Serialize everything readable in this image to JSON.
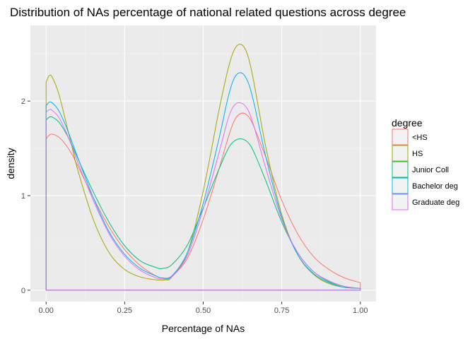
{
  "chart_data": {
    "type": "line",
    "title": "Distribution of NAs percentage of national related questions across degree",
    "xlabel": "Percentage of NAs",
    "ylabel": "density",
    "xlim": [
      -0.05,
      1.05
    ],
    "ylim": [
      -0.12,
      2.8
    ],
    "x_ticks": [
      0.0,
      0.25,
      0.5,
      0.75,
      1.0
    ],
    "x_tick_labels": [
      "0.00",
      "0.25",
      "0.50",
      "0.75",
      "1.00"
    ],
    "y_ticks": [
      0,
      1,
      2
    ],
    "y_tick_labels": [
      "0",
      "1",
      "2"
    ],
    "grid": true,
    "legend": {
      "title": "degree",
      "position": "right"
    },
    "series": [
      {
        "name": "<HS",
        "color": "#F8766D",
        "x": [
          0.0,
          0.01,
          0.02,
          0.04,
          0.06,
          0.08,
          0.1,
          0.15,
          0.2,
          0.25,
          0.3,
          0.35,
          0.37,
          0.4,
          0.45,
          0.5,
          0.55,
          0.58,
          0.6,
          0.62,
          0.64,
          0.66,
          0.7,
          0.75,
          0.8,
          0.85,
          0.9,
          0.95,
          1.0
        ],
        "y": [
          1.6,
          1.64,
          1.65,
          1.62,
          1.55,
          1.45,
          1.32,
          0.98,
          0.67,
          0.43,
          0.26,
          0.15,
          0.13,
          0.15,
          0.34,
          0.75,
          1.28,
          1.62,
          1.8,
          1.87,
          1.85,
          1.74,
          1.4,
          0.95,
          0.6,
          0.36,
          0.22,
          0.13,
          0.08
        ]
      },
      {
        "name": "HS",
        "color": "#A3A500",
        "x": [
          0.0,
          0.01,
          0.02,
          0.04,
          0.06,
          0.08,
          0.1,
          0.15,
          0.2,
          0.25,
          0.3,
          0.35,
          0.38,
          0.4,
          0.45,
          0.5,
          0.55,
          0.58,
          0.6,
          0.62,
          0.64,
          0.66,
          0.7,
          0.75,
          0.8,
          0.85,
          0.9,
          0.95,
          1.0
        ],
        "y": [
          2.2,
          2.27,
          2.25,
          2.08,
          1.82,
          1.55,
          1.28,
          0.75,
          0.4,
          0.22,
          0.14,
          0.11,
          0.11,
          0.14,
          0.4,
          1.05,
          1.9,
          2.35,
          2.55,
          2.6,
          2.5,
          2.22,
          1.5,
          0.8,
          0.38,
          0.17,
          0.07,
          0.03,
          0.02
        ]
      },
      {
        "name": "Junior Coll",
        "color": "#00BF7D",
        "x": [
          0.0,
          0.01,
          0.02,
          0.04,
          0.06,
          0.08,
          0.1,
          0.15,
          0.2,
          0.25,
          0.3,
          0.35,
          0.37,
          0.4,
          0.45,
          0.5,
          0.55,
          0.58,
          0.6,
          0.62,
          0.64,
          0.66,
          0.7,
          0.75,
          0.8,
          0.85,
          0.9,
          0.95,
          1.0
        ],
        "y": [
          1.8,
          1.83,
          1.83,
          1.78,
          1.68,
          1.55,
          1.4,
          1.04,
          0.72,
          0.47,
          0.31,
          0.24,
          0.23,
          0.27,
          0.48,
          0.87,
          1.28,
          1.5,
          1.58,
          1.6,
          1.57,
          1.47,
          1.15,
          0.72,
          0.4,
          0.2,
          0.09,
          0.04,
          0.02
        ]
      },
      {
        "name": "Bachelor deg",
        "color": "#00B0F6",
        "x": [
          0.0,
          0.01,
          0.02,
          0.04,
          0.06,
          0.08,
          0.1,
          0.15,
          0.2,
          0.25,
          0.3,
          0.35,
          0.37,
          0.4,
          0.45,
          0.5,
          0.55,
          0.58,
          0.6,
          0.62,
          0.64,
          0.66,
          0.7,
          0.75,
          0.8,
          0.85,
          0.9,
          0.95,
          1.0
        ],
        "y": [
          1.95,
          1.99,
          1.98,
          1.9,
          1.76,
          1.59,
          1.41,
          0.98,
          0.62,
          0.38,
          0.23,
          0.15,
          0.13,
          0.15,
          0.4,
          0.92,
          1.6,
          2.05,
          2.25,
          2.3,
          2.22,
          2.0,
          1.4,
          0.77,
          0.38,
          0.18,
          0.08,
          0.03,
          0.02
        ]
      },
      {
        "name": "Graduate deg",
        "color": "#E76BF3",
        "x": [
          0.0,
          0.01,
          0.02,
          0.04,
          0.06,
          0.08,
          0.1,
          0.15,
          0.2,
          0.25,
          0.3,
          0.35,
          0.37,
          0.4,
          0.45,
          0.5,
          0.55,
          0.58,
          0.6,
          0.62,
          0.64,
          0.66,
          0.7,
          0.75,
          0.8,
          0.85,
          0.9,
          0.95,
          1.0
        ],
        "y": [
          1.88,
          1.91,
          1.9,
          1.83,
          1.7,
          1.54,
          1.36,
          0.95,
          0.6,
          0.36,
          0.21,
          0.13,
          0.12,
          0.14,
          0.37,
          0.86,
          1.45,
          1.82,
          1.96,
          1.98,
          1.92,
          1.75,
          1.28,
          0.75,
          0.4,
          0.2,
          0.1,
          0.04,
          0.02
        ]
      }
    ]
  }
}
